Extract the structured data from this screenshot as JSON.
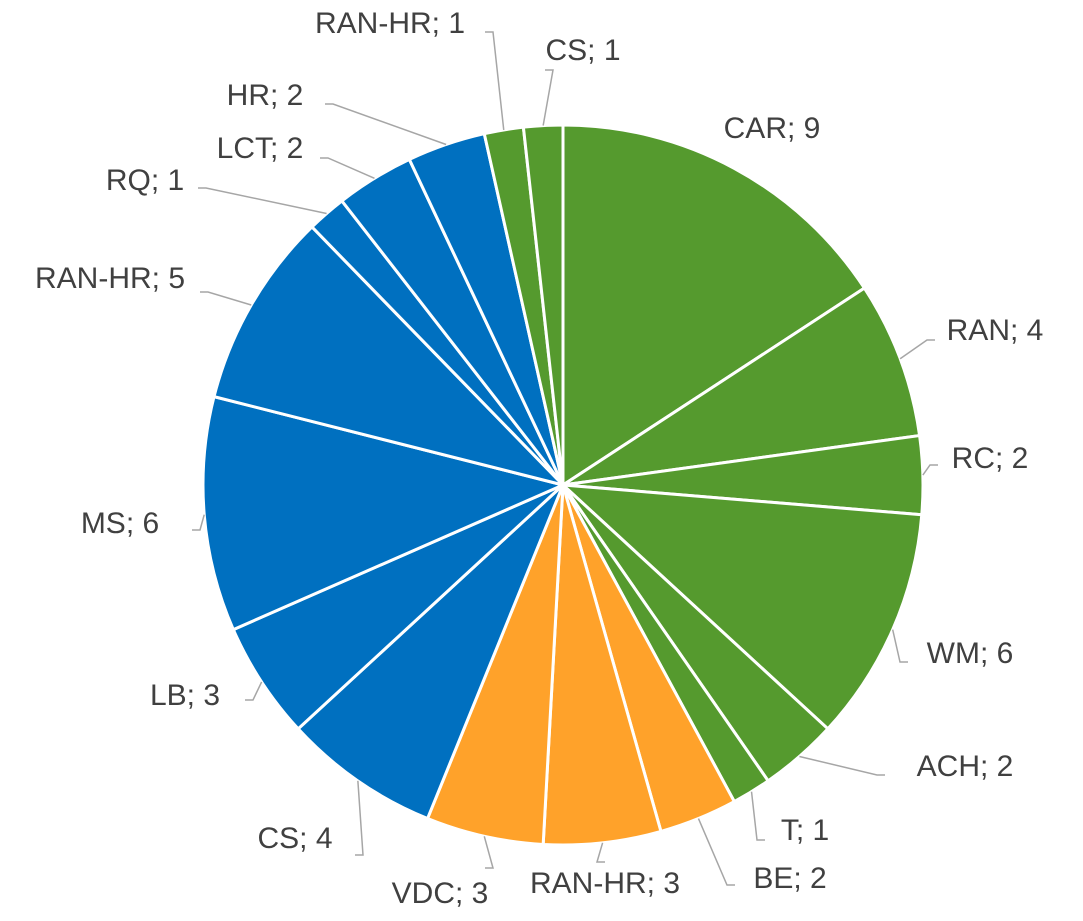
{
  "chart_data": {
    "type": "pie",
    "values": [
      9,
      4,
      2,
      6,
      2,
      1,
      2,
      3,
      3,
      4,
      3,
      6,
      5,
      1,
      2,
      2,
      1,
      1
    ],
    "value_labels": [
      "CAR; 9",
      "RAN; 4",
      "RC; 2",
      "WM; 6",
      "ACH; 2",
      "T; 1",
      "BE; 2",
      "RAN-HR; 3",
      "VDC; 3",
      "CS; 4",
      "LB; 3",
      "MS; 6",
      "RAN-HR; 5",
      "RQ; 1",
      "LCT; 2",
      "HR; 2",
      "RAN-HR; 1",
      "CS; 1"
    ],
    "colors": [
      "#559a2e",
      "#559a2e",
      "#559a2e",
      "#559a2e",
      "#559a2e",
      "#559a2e",
      "#ffa22a",
      "#ffa22a",
      "#ffa22a",
      "#0070c0",
      "#0070c0",
      "#0070c0",
      "#0070c0",
      "#0070c0",
      "#0070c0",
      "#0070c0",
      "#559a2e",
      "#559a2e"
    ]
  }
}
